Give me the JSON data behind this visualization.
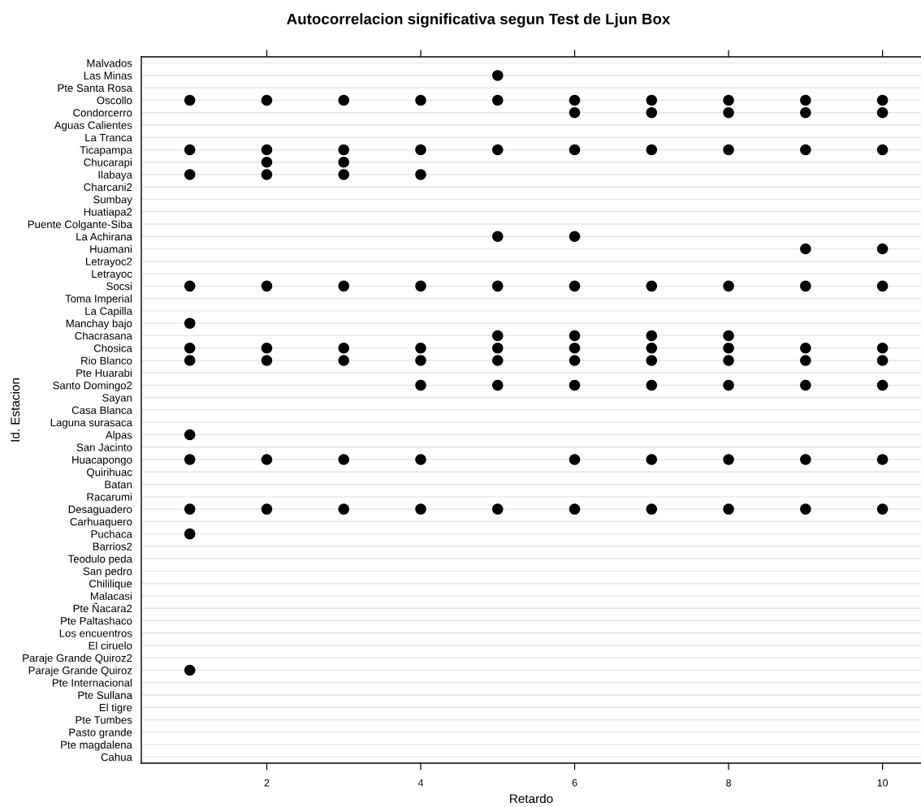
{
  "chart_data": {
    "type": "scatter",
    "orientation": "horizontal",
    "title": "Autocorrelacion significativa segun Test de Ljun Box",
    "xlabel": "Retardo",
    "ylabel": "Id. Estacion",
    "categories": [
      "Malvados",
      "Las Minas",
      "Pte Santa Rosa",
      "Oscollo",
      "Condorcerro",
      "Aguas Calientes",
      "La Tranca",
      "Ticapampa",
      "Chucarapi",
      "Ilabaya",
      "Charcani2",
      "Sumbay",
      "Huatiapa2",
      "Puente Colgante-Siba",
      "La Achirana",
      "Huamani",
      "Letrayoc2",
      "Letrayoc",
      "Socsi",
      "Toma Imperial",
      "La Capilla",
      "Manchay bajo",
      "Chacrasana",
      "Chosica",
      "Rio Blanco",
      "Pte Huarabi",
      "Santo Domingo2",
      "Sayan",
      "Casa Blanca",
      "Laguna surasaca",
      "Alpas",
      "San Jacinto",
      "Huacapongo",
      "Quirihuac",
      "Batan",
      "Racarumi",
      "Desaguadero",
      "Carhuaquero",
      "Puchaca",
      "Barrios2",
      "Teodulo peda",
      "San pedro",
      "Chililique",
      "Malacasi",
      "Pte Ñacara2",
      "Pte Paltashaco",
      "Los encuentros",
      "El ciruelo",
      "Paraje Grande Quiroz2",
      "Paraje Grande Quiroz",
      "Pte Internacional",
      "Pte Sullana",
      "El tigre",
      "Pte Tumbes",
      "Pasto grande",
      "Pte magdalena",
      "Cahua"
    ],
    "series": [
      {
        "color": "#000000",
        "values": [
          null,
          null,
          null,
          1,
          null,
          null,
          null,
          1,
          null,
          1,
          null,
          null,
          null,
          null,
          null,
          null,
          null,
          null,
          1,
          null,
          null,
          1,
          null,
          1,
          1,
          null,
          null,
          null,
          null,
          null,
          1,
          null,
          1,
          null,
          null,
          null,
          1,
          null,
          1,
          null,
          null,
          null,
          null,
          null,
          null,
          null,
          null,
          null,
          null,
          1,
          null,
          null,
          null,
          null,
          null,
          null,
          null
        ]
      },
      {
        "color": "#000000",
        "values": [
          null,
          null,
          null,
          2,
          null,
          null,
          null,
          2,
          2,
          2,
          null,
          null,
          null,
          null,
          null,
          null,
          null,
          null,
          2,
          null,
          null,
          null,
          null,
          2,
          2,
          null,
          null,
          null,
          null,
          null,
          null,
          null,
          2,
          null,
          null,
          null,
          2,
          null,
          null,
          null,
          null,
          null,
          null,
          null,
          null,
          null,
          null,
          null,
          null,
          null,
          null,
          null,
          null,
          null,
          null,
          null,
          null
        ]
      },
      {
        "color": "#000000",
        "values": [
          null,
          null,
          null,
          3,
          null,
          null,
          null,
          3,
          3,
          3,
          null,
          null,
          null,
          null,
          null,
          null,
          null,
          null,
          3,
          null,
          null,
          null,
          null,
          3,
          3,
          null,
          null,
          null,
          null,
          null,
          null,
          null,
          3,
          null,
          null,
          null,
          3,
          null,
          null,
          null,
          null,
          null,
          null,
          null,
          null,
          null,
          null,
          null,
          null,
          null,
          null,
          null,
          null,
          null,
          null,
          null,
          null
        ]
      },
      {
        "color": "#000000",
        "values": [
          null,
          null,
          null,
          4,
          null,
          null,
          null,
          4,
          null,
          4,
          null,
          null,
          null,
          null,
          null,
          null,
          null,
          null,
          4,
          null,
          null,
          null,
          null,
          4,
          4,
          null,
          4,
          null,
          null,
          null,
          null,
          null,
          4,
          null,
          null,
          null,
          4,
          null,
          null,
          null,
          null,
          null,
          null,
          null,
          null,
          null,
          null,
          null,
          null,
          null,
          null,
          null,
          null,
          null,
          null,
          null,
          null
        ]
      },
      {
        "color": "#000000",
        "values": [
          null,
          5,
          null,
          5,
          null,
          null,
          null,
          5,
          null,
          null,
          null,
          null,
          null,
          null,
          5,
          null,
          null,
          null,
          5,
          null,
          null,
          null,
          5,
          5,
          5,
          null,
          5,
          null,
          null,
          null,
          null,
          null,
          null,
          null,
          null,
          null,
          5,
          null,
          null,
          null,
          null,
          null,
          null,
          null,
          null,
          null,
          null,
          null,
          null,
          null,
          null,
          null,
          null,
          null,
          null,
          null,
          null
        ]
      },
      {
        "color": "#000000",
        "values": [
          null,
          null,
          null,
          6,
          6,
          null,
          null,
          6,
          null,
          null,
          null,
          null,
          null,
          null,
          6,
          null,
          null,
          null,
          6,
          null,
          null,
          null,
          6,
          6,
          6,
          null,
          6,
          null,
          null,
          null,
          null,
          null,
          6,
          null,
          null,
          null,
          6,
          null,
          null,
          null,
          null,
          null,
          null,
          null,
          null,
          null,
          null,
          null,
          null,
          null,
          null,
          null,
          null,
          null,
          null,
          null,
          null
        ]
      },
      {
        "color": "#000000",
        "values": [
          null,
          null,
          null,
          7,
          7,
          null,
          null,
          7,
          null,
          null,
          null,
          null,
          null,
          null,
          null,
          null,
          null,
          null,
          7,
          null,
          null,
          null,
          7,
          7,
          7,
          null,
          7,
          null,
          null,
          null,
          null,
          null,
          7,
          null,
          null,
          null,
          7,
          null,
          null,
          null,
          null,
          null,
          null,
          null,
          null,
          null,
          null,
          null,
          null,
          null,
          null,
          null,
          null,
          null,
          null,
          null,
          null
        ]
      },
      {
        "color": "#000000",
        "values": [
          null,
          null,
          null,
          8,
          8,
          null,
          null,
          8,
          null,
          null,
          null,
          null,
          null,
          null,
          null,
          null,
          null,
          null,
          8,
          null,
          null,
          null,
          8,
          8,
          8,
          null,
          8,
          null,
          null,
          null,
          null,
          null,
          8,
          null,
          null,
          null,
          8,
          null,
          null,
          null,
          null,
          null,
          null,
          null,
          null,
          null,
          null,
          null,
          null,
          null,
          null,
          null,
          null,
          null,
          null,
          null,
          null
        ]
      },
      {
        "color": "#000000",
        "values": [
          null,
          null,
          null,
          9,
          9,
          null,
          null,
          9,
          null,
          null,
          null,
          null,
          null,
          null,
          null,
          9,
          null,
          null,
          9,
          null,
          null,
          null,
          null,
          9,
          9,
          null,
          9,
          null,
          null,
          null,
          null,
          null,
          9,
          null,
          null,
          null,
          9,
          null,
          null,
          null,
          null,
          null,
          null,
          null,
          null,
          null,
          null,
          null,
          null,
          null,
          null,
          null,
          null,
          null,
          null,
          null,
          null
        ]
      },
      {
        "color": "#000000",
        "values": [
          null,
          null,
          null,
          10,
          10,
          null,
          null,
          10,
          null,
          null,
          null,
          null,
          null,
          null,
          null,
          10,
          null,
          null,
          10,
          null,
          null,
          null,
          null,
          10,
          10,
          null,
          10,
          null,
          null,
          null,
          null,
          null,
          10,
          null,
          null,
          null,
          10,
          null,
          null,
          null,
          null,
          null,
          null,
          null,
          null,
          null,
          null,
          null,
          null,
          null,
          null,
          null,
          null,
          null,
          null,
          null,
          null
        ]
      }
    ],
    "xlim": [
      0.37,
      10.5
    ],
    "xticks": [
      2,
      4,
      6,
      8,
      10
    ],
    "grid": "y",
    "marker": "circle"
  }
}
